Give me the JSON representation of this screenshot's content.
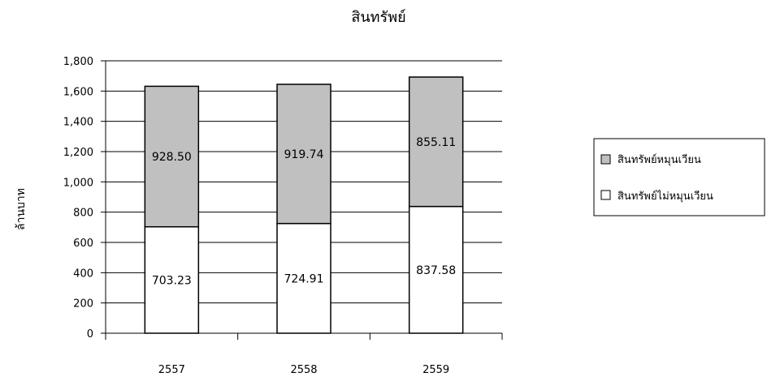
{
  "chart_data": {
    "type": "bar",
    "stacked": true,
    "title": "สินทรัพย์",
    "xlabel": "",
    "ylabel": "ล้านบาท",
    "ylim": [
      0,
      1800
    ],
    "yticks": [
      0,
      200,
      400,
      600,
      800,
      1000,
      1200,
      1400,
      1600,
      1800
    ],
    "ytick_labels": [
      "0",
      "200",
      "400",
      "600",
      "800",
      "1,000",
      "1,200",
      "1,400",
      "1,600",
      "1,800"
    ],
    "categories": [
      "2557",
      "2558",
      "2559"
    ],
    "series": [
      {
        "name": "สินทรัพย์ไม่หมุนเวียน",
        "values": [
          703.23,
          724.91,
          837.58
        ],
        "labels": [
          "703.23",
          "724.91",
          "837.58"
        ],
        "color": "#ffffff"
      },
      {
        "name": "สินทรัพย์หมุนเวียน",
        "values": [
          928.5,
          919.74,
          855.11
        ],
        "labels": [
          "928.50",
          "919.74",
          "855.11"
        ],
        "color": "#c0c0c0"
      }
    ],
    "grid": true,
    "legend_position": "right"
  }
}
